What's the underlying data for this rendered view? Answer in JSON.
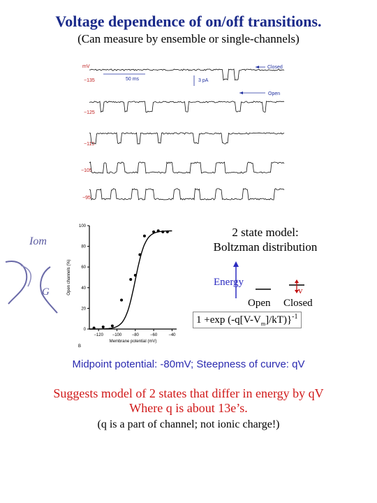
{
  "header": {
    "title": "Voltage dependence of on/off transitions.",
    "subtitle": "(Can measure by ensemble or single-channels)"
  },
  "traces": {
    "unit_label": "mV",
    "rows": [
      {
        "label": "−135"
      },
      {
        "label": "−125"
      },
      {
        "label": "−115"
      },
      {
        "label": "−105"
      },
      {
        "label": "−95"
      }
    ],
    "time_scale": "50 ms",
    "current_scale": "3 pA",
    "closed_label": "Closed",
    "open_label": "Open"
  },
  "chart_data": {
    "type": "scatter",
    "title": "",
    "xlabel": "Membrane potential (mV)",
    "ylabel": "Open channels (%)",
    "panel_label": "B",
    "xlim": [
      -130,
      -35
    ],
    "ylim": [
      0,
      100
    ],
    "x_ticks": [
      "−120",
      "−100",
      "−80",
      "−60",
      "−40"
    ],
    "x_tick_values": [
      -120,
      -100,
      -80,
      -60,
      -40
    ],
    "y_ticks": [
      "0",
      "20",
      "40",
      "60",
      "80",
      "100"
    ],
    "y_tick_values": [
      0,
      20,
      40,
      60,
      80,
      100
    ],
    "points": [
      {
        "x": -125,
        "y": 1
      },
      {
        "x": -115,
        "y": 2
      },
      {
        "x": -105,
        "y": 3
      },
      {
        "x": -95,
        "y": 28
      },
      {
        "x": -85,
        "y": 48
      },
      {
        "x": -80,
        "y": 52
      },
      {
        "x": -75,
        "y": 72
      },
      {
        "x": -70,
        "y": 90
      },
      {
        "x": -60,
        "y": 94
      },
      {
        "x": -55,
        "y": 95
      },
      {
        "x": -50,
        "y": 94
      },
      {
        "x": -45,
        "y": 94
      }
    ],
    "fit": {
      "midpoint": -80,
      "slope": 5.5,
      "max": 95
    }
  },
  "model": {
    "title_line1": "2 state model:",
    "title_line2": "Boltzman distribution",
    "energy_label": "Energy",
    "open_label": "Open",
    "closed_label": "Closed",
    "v_label": "v",
    "formula_main": "1 +exp (-q[V-V",
    "formula_sub": "m",
    "formula_end": "]/kT)}",
    "formula_exp": "-1"
  },
  "handwriting": {
    "text1": "Iom",
    "text2": "G"
  },
  "footer": {
    "midpoint": "Midpoint potential: -80mV; Steepness of curve: qV",
    "suggests_line1": "Suggests model of 2 states that differ in energy by qV",
    "suggests_line2": "Where q is about 13e’s.",
    "note": "(q is a part of channel; not ionic charge!)"
  }
}
